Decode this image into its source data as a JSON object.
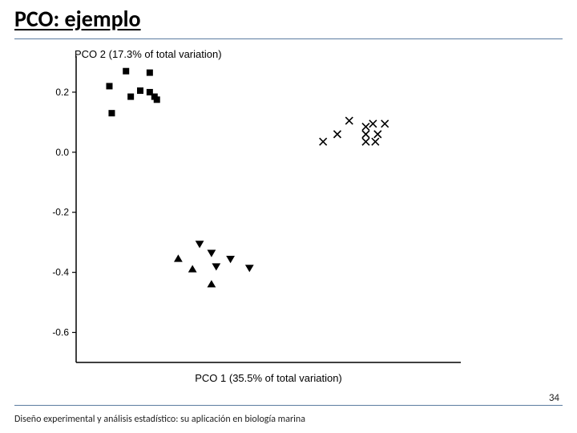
{
  "title": "PCO: ejemplo",
  "footer": "Diseño experimental y análisis estadístico: su aplicación en biología marina",
  "page_number": "34",
  "colors": {
    "background": "#ffffff",
    "text": "#000000",
    "rule": "#5b7ca0",
    "axis": "#000000",
    "marker": "#000000"
  },
  "chart": {
    "type": "scatter",
    "x_axis": {
      "label": "PCO 1 (35.5% of total variation)",
      "min": -0.36,
      "max": 0.45,
      "ticks": []
    },
    "y_axis": {
      "label": "PCO 2 (17.3% of total variation)",
      "min": -0.7,
      "max": 0.32,
      "ticks": [
        0.2,
        0.0,
        -0.2,
        -0.4,
        -0.6
      ]
    },
    "series": [
      {
        "name": "group-squares",
        "marker": "square-filled",
        "size": 8,
        "color": "#000000",
        "points": [
          [
            -0.255,
            0.27
          ],
          [
            -0.205,
            0.265
          ],
          [
            -0.29,
            0.22
          ],
          [
            -0.225,
            0.205
          ],
          [
            -0.245,
            0.185
          ],
          [
            -0.205,
            0.2
          ],
          [
            -0.195,
            0.185
          ],
          [
            -0.19,
            0.175
          ],
          [
            -0.285,
            0.13
          ]
        ]
      },
      {
        "name": "group-crosses",
        "marker": "cross-x",
        "size": 9,
        "color": "#000000",
        "points": [
          [
            0.215,
            0.105
          ],
          [
            0.25,
            0.085
          ],
          [
            0.265,
            0.095
          ],
          [
            0.29,
            0.095
          ],
          [
            0.19,
            0.06
          ],
          [
            0.25,
            0.06
          ],
          [
            0.275,
            0.06
          ],
          [
            0.16,
            0.035
          ],
          [
            0.25,
            0.035
          ],
          [
            0.27,
            0.035
          ]
        ]
      },
      {
        "name": "group-triangles-down",
        "marker": "triangle-down-filled",
        "size": 9,
        "color": "#000000",
        "points": [
          [
            -0.1,
            -0.305
          ],
          [
            -0.075,
            -0.335
          ],
          [
            -0.035,
            -0.355
          ],
          [
            -0.065,
            -0.38
          ],
          [
            0.005,
            -0.385
          ]
        ]
      },
      {
        "name": "group-triangles-up",
        "marker": "triangle-up-filled",
        "size": 9,
        "color": "#000000",
        "points": [
          [
            -0.145,
            -0.355
          ],
          [
            -0.115,
            -0.39
          ],
          [
            -0.075,
            -0.44
          ]
        ]
      }
    ],
    "axis_stroke_width": 1.5,
    "tick_length": 5,
    "label_fontsize": 13,
    "tick_fontsize": 12
  }
}
